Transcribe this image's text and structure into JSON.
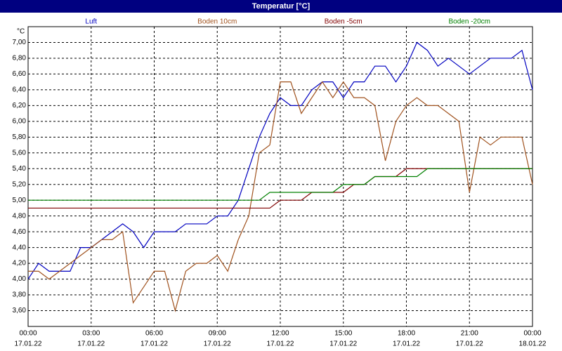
{
  "chart_data": {
    "type": "line",
    "title": "Temperatur [°C]",
    "y_unit": "°C",
    "x": [
      0,
      0.5,
      1,
      1.5,
      2,
      2.5,
      3,
      3.5,
      4,
      4.5,
      5,
      5.5,
      6,
      6.5,
      7,
      7.5,
      8,
      8.5,
      9,
      9.5,
      10,
      10.5,
      11,
      11.5,
      12,
      12.5,
      13,
      13.5,
      14,
      14.5,
      15,
      15.5,
      16,
      16.5,
      17,
      17.5,
      18,
      18.5,
      19,
      19.5,
      20,
      20.5,
      21,
      21.5,
      22,
      22.5,
      23,
      23.5,
      24
    ],
    "xlim": [
      0,
      24
    ],
    "xticks": [
      {
        "value": 0,
        "label": "00:00"
      },
      {
        "value": 3,
        "label": "03:00"
      },
      {
        "value": 6,
        "label": "06:00"
      },
      {
        "value": 9,
        "label": "09:00"
      },
      {
        "value": 12,
        "label": "12:00"
      },
      {
        "value": 15,
        "label": "15:00"
      },
      {
        "value": 18,
        "label": "18:00"
      },
      {
        "value": 21,
        "label": "21:00"
      },
      {
        "value": 24,
        "label": "00:00"
      }
    ],
    "xtick_dates": [
      "17.01.22",
      "17.01.22",
      "17.01.22",
      "17.01.22",
      "17.01.22",
      "17.01.22",
      "17.01.22",
      "17.01.22",
      "18.01.22"
    ],
    "ylim": [
      3.4,
      7.2
    ],
    "yticks": [
      {
        "value": 3.6,
        "label": "3,60"
      },
      {
        "value": 3.8,
        "label": "3,80"
      },
      {
        "value": 4.0,
        "label": "4,00"
      },
      {
        "value": 4.2,
        "label": "4,20"
      },
      {
        "value": 4.4,
        "label": "4,40"
      },
      {
        "value": 4.6,
        "label": "4,60"
      },
      {
        "value": 4.8,
        "label": "4,80"
      },
      {
        "value": 5.0,
        "label": "5,00"
      },
      {
        "value": 5.2,
        "label": "5,20"
      },
      {
        "value": 5.4,
        "label": "5,40"
      },
      {
        "value": 5.6,
        "label": "5,60"
      },
      {
        "value": 5.8,
        "label": "5,80"
      },
      {
        "value": 6.0,
        "label": "6,00"
      },
      {
        "value": 6.2,
        "label": "6,20"
      },
      {
        "value": 6.4,
        "label": "6,40"
      },
      {
        "value": 6.6,
        "label": "6,60"
      },
      {
        "value": 6.8,
        "label": "6,80"
      },
      {
        "value": 7.0,
        "label": "7,00"
      }
    ],
    "grid": true,
    "series": [
      {
        "name": "Luft",
        "color": "#0000c0",
        "values": [
          4.0,
          4.2,
          4.1,
          4.1,
          4.1,
          4.4,
          4.4,
          4.5,
          4.6,
          4.7,
          4.6,
          4.4,
          4.6,
          4.6,
          4.6,
          4.7,
          4.7,
          4.7,
          4.8,
          4.8,
          5.0,
          5.4,
          5.8,
          6.1,
          6.3,
          6.2,
          6.2,
          6.4,
          6.5,
          6.5,
          6.3,
          6.5,
          6.5,
          6.7,
          6.7,
          6.5,
          6.7,
          7.0,
          6.9,
          6.7,
          6.8,
          6.7,
          6.6,
          6.7,
          6.8,
          6.8,
          6.8,
          6.9,
          6.4
        ]
      },
      {
        "name": "Boden 10cm",
        "color": "#a0521e",
        "values": [
          4.1,
          4.1,
          4.0,
          4.1,
          4.2,
          4.3,
          4.4,
          4.5,
          4.5,
          4.6,
          3.7,
          3.9,
          4.1,
          4.1,
          3.6,
          4.1,
          4.2,
          4.2,
          4.3,
          4.1,
          4.5,
          4.8,
          5.6,
          5.7,
          6.5,
          6.5,
          6.1,
          6.3,
          6.5,
          6.3,
          6.5,
          6.3,
          6.3,
          6.2,
          5.5,
          6.0,
          6.2,
          6.3,
          6.2,
          6.2,
          6.1,
          6.0,
          5.1,
          5.8,
          5.7,
          5.8,
          5.8,
          5.8,
          5.2
        ]
      },
      {
        "name": "Boden -5cm",
        "color": "#800000",
        "values": [
          4.9,
          4.9,
          4.9,
          4.9,
          4.9,
          4.9,
          4.9,
          4.9,
          4.9,
          4.9,
          4.9,
          4.9,
          4.9,
          4.9,
          4.9,
          4.9,
          4.9,
          4.9,
          4.9,
          4.9,
          4.9,
          4.9,
          4.9,
          4.9,
          5.0,
          5.0,
          5.0,
          5.1,
          5.1,
          5.1,
          5.1,
          5.2,
          5.2,
          5.3,
          5.3,
          5.3,
          5.4,
          5.4,
          5.4,
          5.4,
          5.4,
          5.4,
          5.4,
          5.4,
          5.4,
          5.4,
          5.4,
          5.4,
          5.4
        ]
      },
      {
        "name": "Boden -20cm",
        "color": "#008000",
        "values": [
          5.0,
          5.0,
          5.0,
          5.0,
          5.0,
          5.0,
          5.0,
          5.0,
          5.0,
          5.0,
          5.0,
          5.0,
          5.0,
          5.0,
          5.0,
          5.0,
          5.0,
          5.0,
          5.0,
          5.0,
          5.0,
          5.0,
          5.0,
          5.1,
          5.1,
          5.1,
          5.1,
          5.1,
          5.1,
          5.1,
          5.2,
          5.2,
          5.2,
          5.3,
          5.3,
          5.3,
          5.3,
          5.3,
          5.4,
          5.4,
          5.4,
          5.4,
          5.4,
          5.4,
          5.4,
          5.4,
          5.4,
          5.4,
          5.4
        ]
      }
    ]
  }
}
